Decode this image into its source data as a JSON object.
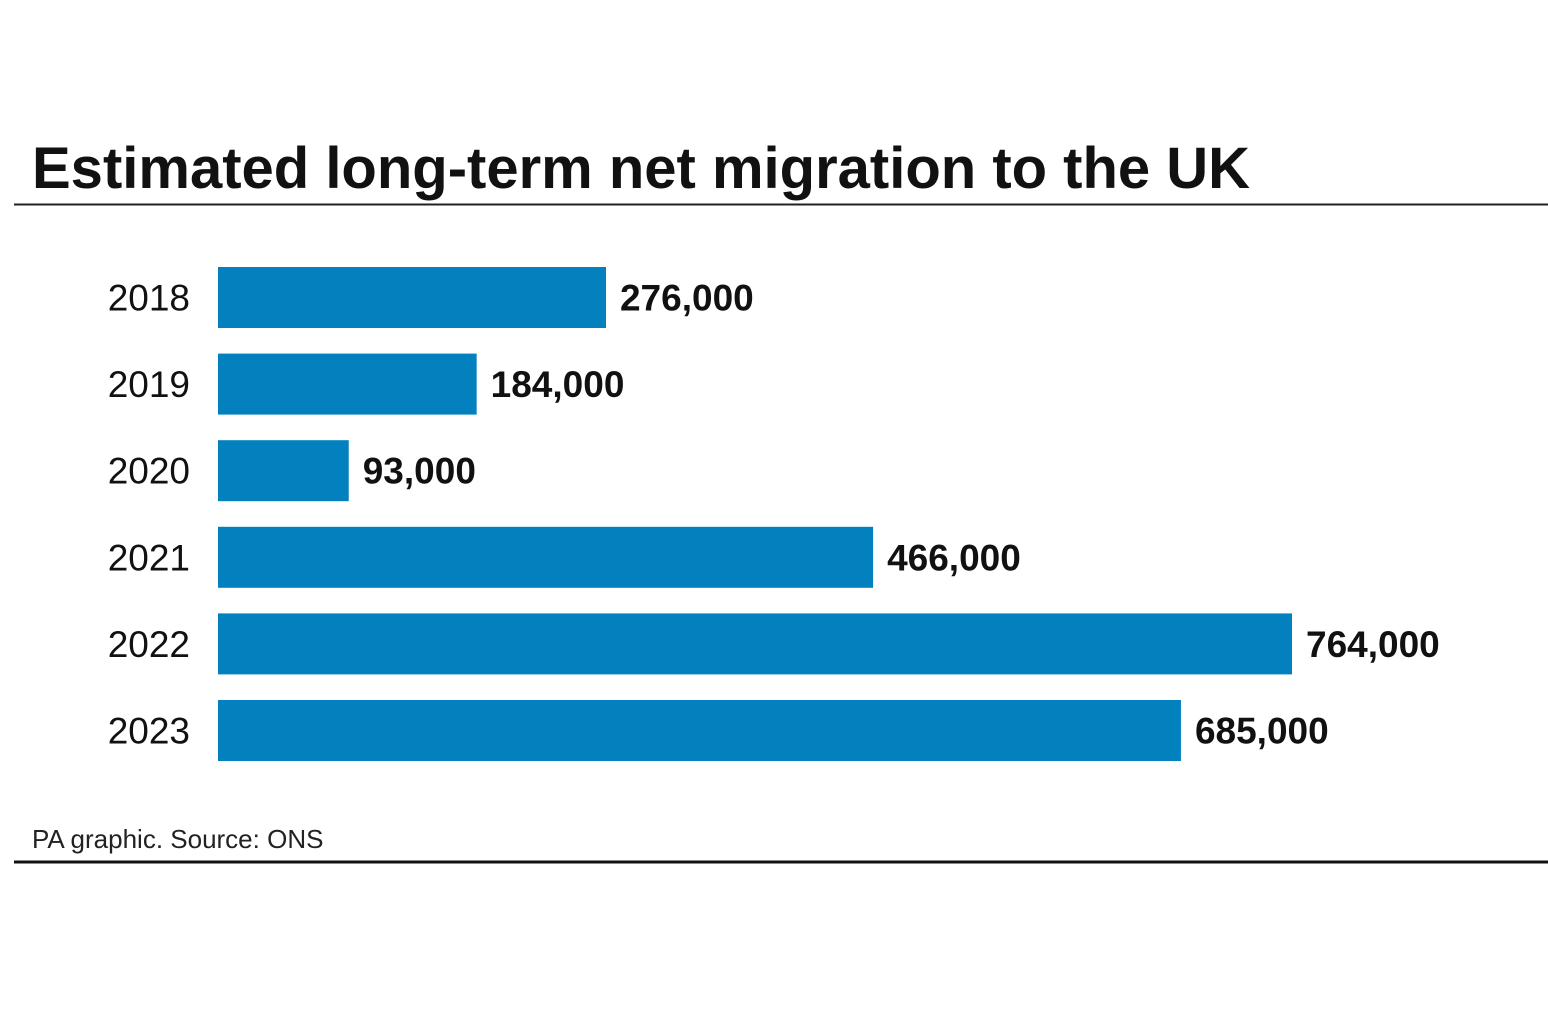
{
  "chart_data": {
    "type": "bar",
    "orientation": "horizontal",
    "title": "Estimated long-term net migration to the UK",
    "categories": [
      "2018",
      "2019",
      "2020",
      "2021",
      "2022",
      "2023"
    ],
    "values": [
      276000,
      184000,
      93000,
      466000,
      764000,
      685000
    ],
    "data_labels": [
      "276,000",
      "184,000",
      "93,000",
      "466,000",
      "764,000",
      "685,000"
    ],
    "xlim": [
      0,
      764000
    ],
    "grid": false,
    "legend": "none",
    "bar_color": "#0281BE",
    "source": "PA graphic. Source: ONS"
  }
}
